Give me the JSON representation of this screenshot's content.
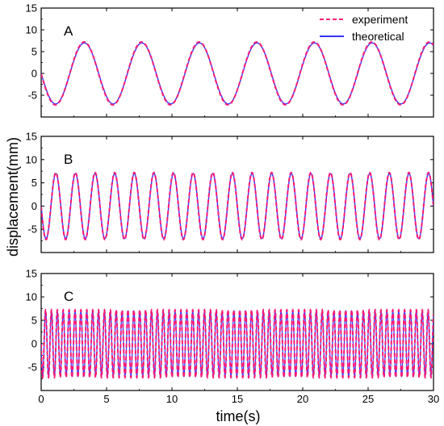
{
  "chart_data": {
    "type": "line",
    "xlabel": "time(s)",
    "ylabel": "displacement(mm)",
    "xlim": [
      0,
      30
    ],
    "ylim": [
      -10,
      15
    ],
    "x_ticks": [
      0,
      5,
      10,
      15,
      20,
      25,
      30
    ],
    "y_ticks": [
      -5,
      0,
      5,
      10,
      15
    ],
    "legend": {
      "position": "top-right",
      "entries": [
        {
          "label": "experiment",
          "color": "#ff1a75",
          "style": "dashed"
        },
        {
          "label": "theoretical",
          "color": "#3333ff",
          "style": "solid"
        }
      ]
    },
    "panels": [
      {
        "label": "A",
        "amplitude": 7.0,
        "period": 4.4,
        "phase_start_value": 0,
        "initial_direction": "down",
        "series": [
          {
            "name": "experiment"
          },
          {
            "name": "theoretical"
          }
        ]
      },
      {
        "label": "B",
        "amplitude": 7.0,
        "period": 1.5,
        "phase_start_value": 0,
        "initial_direction": "down",
        "series": [
          {
            "name": "experiment"
          },
          {
            "name": "theoretical"
          }
        ]
      },
      {
        "label": "C",
        "amplitude": 7.0,
        "period": 0.45,
        "phase_start_value": 0,
        "initial_direction": "down",
        "series": [
          {
            "name": "experiment"
          },
          {
            "name": "theoretical"
          }
        ]
      }
    ]
  }
}
